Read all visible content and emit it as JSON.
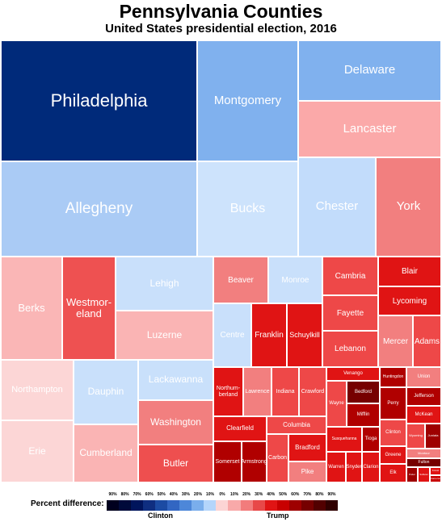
{
  "chart_data": {
    "type": "treemap",
    "title": "Pennsylvania Counties",
    "subtitle": "United States presidential election, 2016",
    "legend": {
      "label": "Percent difference:",
      "clinton_label": "Clinton",
      "trump_label": "Trump",
      "ticks": [
        "90%",
        "80%",
        "70%",
        "60%",
        "50%",
        "40%",
        "30%",
        "20%",
        "10%",
        "0%",
        "10%",
        "20%",
        "30%",
        "40%",
        "50%",
        "60%",
        "70%",
        "80%",
        "90%"
      ],
      "colors": [
        "#00001e",
        "#000a3a",
        "#00155c",
        "#0f2e80",
        "#1c4ba3",
        "#3266c2",
        "#4d87d9",
        "#7aaeec",
        "#b4d5fb",
        "#fcd4d4",
        "#f8a9a9",
        "#f27c7c",
        "#e84848",
        "#e01414",
        "#c80000",
        "#9e0000",
        "#760000",
        "#520000",
        "#300000"
      ]
    },
    "counties": [
      {
        "name": "Philadelphia",
        "label": "Philadelphia",
        "winner": "Clinton",
        "margin": 67,
        "color": "#002a7a"
      },
      {
        "name": "Allegheny",
        "label": "Allegheny",
        "winner": "Clinton",
        "margin": 16,
        "color": "#aacbf5"
      },
      {
        "name": "Montgomery",
        "label": "Montgomery",
        "winner": "Clinton",
        "margin": 21,
        "color": "#80b1ee"
      },
      {
        "name": "Delaware",
        "label": "Delaware",
        "winner": "Clinton",
        "margin": 22,
        "color": "#80b1ee"
      },
      {
        "name": "Lancaster",
        "label": "Lancaster",
        "winner": "Trump",
        "margin": 19,
        "color": "#fba9a9"
      },
      {
        "name": "Bucks",
        "label": "Bucks",
        "winner": "Clinton",
        "margin": 1,
        "color": "#cde3fc"
      },
      {
        "name": "Chester",
        "label": "Chester",
        "winner": "Clinton",
        "margin": 9,
        "color": "#c2dcfb"
      },
      {
        "name": "York",
        "label": "York",
        "winner": "Trump",
        "margin": 26,
        "color": "#f27f7f"
      },
      {
        "name": "Berks",
        "label": "Berks",
        "winner": "Trump",
        "margin": 9,
        "color": "#fab6b6"
      },
      {
        "name": "Westmoreland",
        "label": "Westmor-\neland",
        "winner": "Trump",
        "margin": 29,
        "color": "#ee5151"
      },
      {
        "name": "Lehigh",
        "label": "Lehigh",
        "winner": "Clinton",
        "margin": 5,
        "color": "#c9e0fb"
      },
      {
        "name": "Luzerne",
        "label": "Luzerne",
        "winner": "Trump",
        "margin": 19,
        "color": "#fab4b4"
      },
      {
        "name": "Northampton",
        "label": "Northampton",
        "winner": "Trump",
        "margin": 4,
        "color": "#fcd6d6"
      },
      {
        "name": "Dauphin",
        "label": "Dauphin",
        "winner": "Clinton",
        "margin": 3,
        "color": "#c9e0fb"
      },
      {
        "name": "Lackawanna",
        "label": "Lackawanna",
        "winner": "Clinton",
        "margin": 4,
        "color": "#c9e0fb"
      },
      {
        "name": "Washington",
        "label": "Washington",
        "winner": "Trump",
        "margin": 25,
        "color": "#f27f7f"
      },
      {
        "name": "Erie",
        "label": "Erie",
        "winner": "Trump",
        "margin": 2,
        "color": "#fcd6d6"
      },
      {
        "name": "Cumberland",
        "label": "Cumberland",
        "winner": "Trump",
        "margin": 18,
        "color": "#fab4b4"
      },
      {
        "name": "Butler",
        "label": "Butler",
        "winner": "Trump",
        "margin": 36,
        "color": "#ee4f4f"
      },
      {
        "name": "Beaver",
        "label": "Beaver",
        "winner": "Trump",
        "margin": 19,
        "color": "#f27f7f"
      },
      {
        "name": "Monroe",
        "label": "Monroe",
        "winner": "Clinton",
        "margin": 2,
        "color": "#c9e0fb"
      },
      {
        "name": "Centre",
        "label": "Centre",
        "winner": "Clinton",
        "margin": 3,
        "color": "#c9e0fb"
      },
      {
        "name": "Franklin",
        "label": "Franklin",
        "winner": "Trump",
        "margin": 43,
        "color": "#e01414"
      },
      {
        "name": "Schuylkill",
        "label": "Schuylkill",
        "winner": "Trump",
        "margin": 42,
        "color": "#e01414"
      },
      {
        "name": "Cambria",
        "label": "Cambria",
        "winner": "Trump",
        "margin": 37,
        "color": "#ee4848"
      },
      {
        "name": "Fayette",
        "label": "Fayette",
        "winner": "Trump",
        "margin": 30,
        "color": "#ee4848"
      },
      {
        "name": "Lebanon",
        "label": "Lebanon",
        "winner": "Trump",
        "margin": 35,
        "color": "#ee4848"
      },
      {
        "name": "Blair",
        "label": "Blair",
        "winner": "Trump",
        "margin": 42,
        "color": "#e01414"
      },
      {
        "name": "Lycoming",
        "label": "Lycoming",
        "winner": "Trump",
        "margin": 40,
        "color": "#e01414"
      },
      {
        "name": "Mercer",
        "label": "Mercer",
        "winner": "Trump",
        "margin": 21,
        "color": "#f27f7f"
      },
      {
        "name": "Adams",
        "label": "Adams",
        "winner": "Trump",
        "margin": 34,
        "color": "#ee4848"
      },
      {
        "name": "Northumberland",
        "label": "Northum-\nberland",
        "winner": "Trump",
        "margin": 41,
        "color": "#e01414"
      },
      {
        "name": "Lawrence",
        "label": "Lawrence",
        "winner": "Trump",
        "margin": 23,
        "color": "#f27f7f"
      },
      {
        "name": "Indiana",
        "label": "Indiana",
        "winner": "Trump",
        "margin": 35,
        "color": "#ee4848"
      },
      {
        "name": "Crawford",
        "label": "Crawford",
        "winner": "Trump",
        "margin": 35,
        "color": "#ee4848"
      },
      {
        "name": "Clearfield",
        "label": "Clearfield",
        "winner": "Trump",
        "margin": 45,
        "color": "#e01414"
      },
      {
        "name": "Columbia",
        "label": "Columbia",
        "winner": "Trump",
        "margin": 32,
        "color": "#ee4848"
      },
      {
        "name": "Somerset",
        "label": "Somerset",
        "winner": "Trump",
        "margin": 55,
        "color": "#b00000"
      },
      {
        "name": "Armstrong",
        "label": "Armstrong",
        "winner": "Trump",
        "margin": 51,
        "color": "#b00000"
      },
      {
        "name": "Carbon",
        "label": "Carbon",
        "winner": "Trump",
        "margin": 31,
        "color": "#ee4848"
      },
      {
        "name": "Bradford",
        "label": "Bradford",
        "winner": "Trump",
        "margin": 43,
        "color": "#e01414"
      },
      {
        "name": "Pike",
        "label": "Pike",
        "winner": "Trump",
        "margin": 22,
        "color": "#f27f7f"
      },
      {
        "name": "Venango",
        "label": "Venango",
        "winner": "Trump",
        "margin": 42,
        "color": "#e01414"
      },
      {
        "name": "Huntingdon",
        "label": "Huntingdon",
        "winner": "Trump",
        "margin": 50,
        "color": "#b00000"
      },
      {
        "name": "Union",
        "label": "Union",
        "winner": "Trump",
        "margin": 20,
        "color": "#f27f7f"
      },
      {
        "name": "Wayne",
        "label": "Wayne",
        "winner": "Trump",
        "margin": 33,
        "color": "#ee4848"
      },
      {
        "name": "Bedford",
        "label": "Bedford",
        "winner": "Trump",
        "margin": 67,
        "color": "#760000"
      },
      {
        "name": "Mifflin",
        "label": "Mifflin",
        "winner": "Trump",
        "margin": 55,
        "color": "#b00000"
      },
      {
        "name": "Perry",
        "label": "Perry",
        "winner": "Trump",
        "margin": 50,
        "color": "#b00000"
      },
      {
        "name": "Jefferson",
        "label": "Jefferson",
        "winner": "Trump",
        "margin": 56,
        "color": "#b00000"
      },
      {
        "name": "McKean",
        "label": "McKean",
        "winner": "Trump",
        "margin": 43,
        "color": "#e01414"
      },
      {
        "name": "Susquehanna",
        "label": "Susquehanna",
        "winner": "Trump",
        "margin": 42,
        "color": "#e01414"
      },
      {
        "name": "Tioga",
        "label": "Tioga",
        "winner": "Trump",
        "margin": 53,
        "color": "#b00000"
      },
      {
        "name": "Clinton",
        "label": "Clinton",
        "winner": "Trump",
        "margin": 31,
        "color": "#ee4848"
      },
      {
        "name": "Wyoming",
        "label": "Wyoming",
        "winner": "Trump",
        "margin": 34,
        "color": "#ee4848"
      },
      {
        "name": "Juniata",
        "label": "Juniata",
        "winner": "Trump",
        "margin": 58,
        "color": "#9e0000"
      },
      {
        "name": "Greene",
        "label": "Greene",
        "winner": "Trump",
        "margin": 40,
        "color": "#e01414"
      },
      {
        "name": "Warren",
        "label": "Warren",
        "winner": "Trump",
        "margin": 38,
        "color": "#e01414"
      },
      {
        "name": "Snyder",
        "label": "Snyder",
        "winner": "Trump",
        "margin": 48,
        "color": "#e01414"
      },
      {
        "name": "Clarion",
        "label": "Clarion",
        "winner": "Trump",
        "margin": 48,
        "color": "#e01414"
      },
      {
        "name": "Elk",
        "label": "Elk",
        "winner": "Trump",
        "margin": 40,
        "color": "#e01414"
      },
      {
        "name": "Montour",
        "label": "Montour",
        "winner": "Trump",
        "margin": 27,
        "color": "#f27f7f"
      },
      {
        "name": "Fulton",
        "label": "Fulton",
        "winner": "Trump",
        "margin": 71,
        "color": "#760000"
      },
      {
        "name": "Potter",
        "label": "Potter",
        "winner": "Trump",
        "margin": 64,
        "color": "#9e0000"
      },
      {
        "name": "Sullivan",
        "label": "Sullivan",
        "winner": "Trump",
        "margin": 41,
        "color": "#e01414"
      },
      {
        "name": "Forest",
        "label": "Forest",
        "winner": "Trump",
        "margin": 40,
        "color": "#e01414"
      },
      {
        "name": "Cameron",
        "label": "Cameron",
        "winner": "Trump",
        "margin": 47,
        "color": "#c80000"
      }
    ]
  }
}
